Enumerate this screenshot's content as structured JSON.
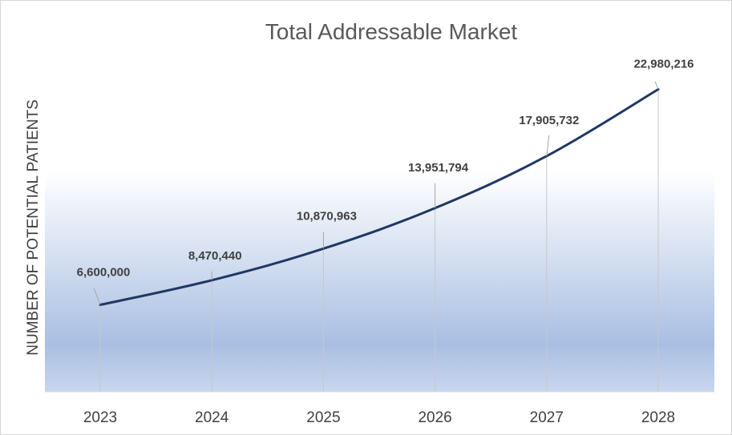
{
  "chart_data": {
    "type": "line",
    "title": "Total Addressable Market",
    "xlabel": "",
    "ylabel": "NUMBER OF POTENTIAL PATIENTS",
    "categories": [
      "2023",
      "2024",
      "2025",
      "2026",
      "2027",
      "2028"
    ],
    "series": [
      {
        "name": "",
        "values": [
          6600000,
          8470440,
          10870963,
          13951794,
          17905732,
          22980216
        ],
        "labels": [
          "6,600,000",
          "8,470,440",
          "10,870,963",
          "13,951,794",
          "17,905,732",
          "22,980,216"
        ]
      }
    ],
    "ylim": [
      0,
      25000000
    ],
    "grid": false,
    "legend": "none",
    "colors": {
      "line": "#1f3864",
      "drop_line": "#c8c8c8",
      "gradient_top": "#ffffff",
      "gradient_bottom": "#b4c6e7"
    }
  }
}
